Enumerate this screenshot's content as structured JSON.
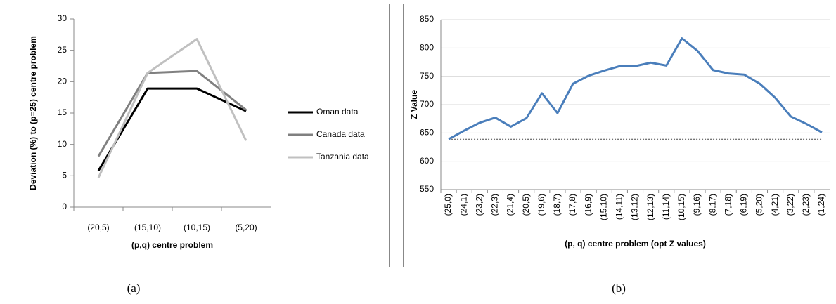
{
  "chart_data": [
    {
      "type": "line",
      "caption": "(a)",
      "x_label": "(p,q) centre problem",
      "y_label": "Deviation (%) to (p=25) centre problem",
      "categories": [
        "(20,5)",
        "(15,10)",
        "(10,15)",
        "(5,20)"
      ],
      "series": [
        {
          "name": "Oman data",
          "color": "#000000",
          "values": [
            5.8,
            18.9,
            18.9,
            15.3
          ]
        },
        {
          "name": "Canada data",
          "color": "#808080",
          "values": [
            8.1,
            21.4,
            21.7,
            15.5
          ]
        },
        {
          "name": "Tanzania data",
          "color": "#c0c0c0",
          "values": [
            4.7,
            21.4,
            26.8,
            10.6
          ]
        }
      ],
      "ylim": [
        0,
        30
      ],
      "yticks": [
        0,
        5,
        10,
        15,
        20,
        25,
        30
      ],
      "grid": false,
      "legend": "right"
    },
    {
      "type": "line",
      "caption": "(b)",
      "x_label": "(p, q) centre problem (opt Z values)",
      "y_label": "Z Value",
      "categories": [
        "(25,0)",
        "(24,1)",
        "(23,2)",
        "(22,3)",
        "(21,4)",
        "(20,5)",
        "(19,6)",
        "(18,7)",
        "(17,8)",
        "(16,9)",
        "(15,10)",
        "(14,11)",
        "(13,12)",
        "(12,13)",
        "(11,14)",
        "(10,15)",
        "(9,16)",
        "(8,17)",
        "(7,18)",
        "(6,19)",
        "(5,20)",
        "(4,21)",
        "(3,22)",
        "(2,23)",
        "(1,24)"
      ],
      "series": [
        {
          "name": "Z value",
          "color": "#4a7ebb",
          "values": [
            639,
            654,
            668,
            677,
            661,
            676,
            720,
            685,
            737,
            751,
            760,
            768,
            768,
            774,
            769,
            817,
            795,
            761,
            755,
            753,
            737,
            712,
            679,
            666,
            651
          ]
        }
      ],
      "reference": 639,
      "ylim": [
        550,
        850
      ],
      "yticks": [
        550,
        600,
        650,
        700,
        750,
        800,
        850
      ],
      "grid": true
    }
  ]
}
